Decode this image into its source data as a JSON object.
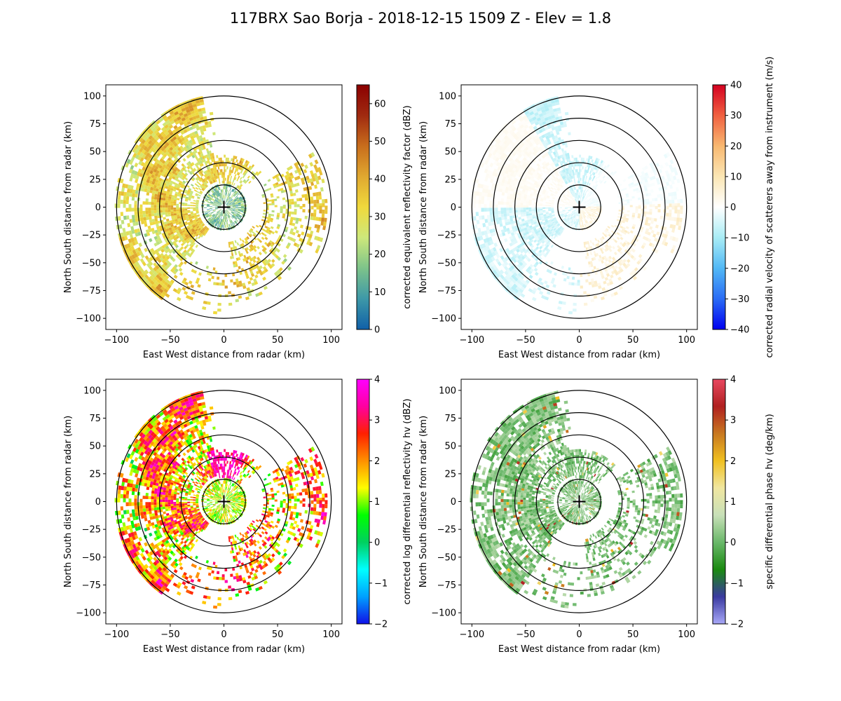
{
  "figure": {
    "title": "117BRX Sao Borja - 2018-12-15 1509 Z -  Elev = 1.8"
  },
  "colors": {
    "background": "#ffffff",
    "ring": "#000000"
  },
  "chart_data": [
    {
      "type": "heatmap",
      "title": "",
      "xlabel": "East West distance from radar (km)",
      "ylabel": "North South distance from radar (km)",
      "xlim": [
        -110,
        110
      ],
      "ylim": [
        -110,
        110
      ],
      "xticks": [
        -100,
        -50,
        0,
        50,
        100
      ],
      "yticks": [
        -100,
        -75,
        -50,
        -25,
        0,
        25,
        50,
        75,
        100
      ],
      "range_rings_km": [
        20,
        40,
        60,
        80,
        100
      ],
      "colorbar": {
        "label": "corrected equivalent reflectivity factor (dBZ)",
        "range": [
          0,
          65
        ],
        "ticks": [
          0,
          10,
          20,
          30,
          40,
          50,
          60
        ],
        "colormap": [
          "#1060a8",
          "#3d98a8",
          "#7dc38a",
          "#cde87b",
          "#f0d93c",
          "#e0a830",
          "#c86d1c",
          "#a02a10",
          "#8b0000"
        ]
      },
      "field": "reflectivity"
    },
    {
      "type": "heatmap",
      "title": "",
      "xlabel": "East West distance from radar (km)",
      "ylabel": "North South distance from radar (km)",
      "xlim": [
        -110,
        110
      ],
      "ylim": [
        -110,
        110
      ],
      "xticks": [
        -100,
        -50,
        0,
        50,
        100
      ],
      "yticks": [
        -100,
        -75,
        -50,
        -25,
        0,
        25,
        50,
        75,
        100
      ],
      "range_rings_km": [
        20,
        40,
        60,
        80,
        100
      ],
      "colorbar": {
        "label": "corrected radial velocity of scatterers away from instrument (m/s)",
        "range": [
          -40,
          40
        ],
        "ticks": [
          -40,
          -30,
          -20,
          -10,
          0,
          10,
          20,
          30,
          40
        ],
        "colormap": [
          "#0000f0",
          "#2a6cf5",
          "#52b8f5",
          "#a8ecf5",
          "#ffffff",
          "#fbe6b4",
          "#f8b870",
          "#f06040",
          "#d40020"
        ]
      },
      "field": "velocity"
    },
    {
      "type": "heatmap",
      "title": "",
      "xlabel": "East West distance from radar (km)",
      "ylabel": "North South distance from radar (km)",
      "xlim": [
        -110,
        110
      ],
      "ylim": [
        -110,
        110
      ],
      "xticks": [
        -100,
        -50,
        0,
        50,
        100
      ],
      "yticks": [
        -100,
        -75,
        -50,
        -25,
        0,
        25,
        50,
        75,
        100
      ],
      "range_rings_km": [
        20,
        40,
        60,
        80,
        100
      ],
      "colorbar": {
        "label": "corrected log differential reflectivity hv (dBZ)",
        "range": [
          -2,
          4
        ],
        "ticks": [
          -2,
          -1,
          0,
          1,
          2,
          3,
          4
        ],
        "colormap": [
          "#1010e8",
          "#00a0ff",
          "#00ffff",
          "#00d060",
          "#00ff00",
          "#fffd00",
          "#ff9000",
          "#ff2000",
          "#ff00a0",
          "#ff00ff"
        ]
      },
      "field": "zdr"
    },
    {
      "type": "heatmap",
      "title": "",
      "xlabel": "East West distance from radar (km)",
      "ylabel": "North South distance from radar (km)",
      "xlim": [
        -110,
        110
      ],
      "ylim": [
        -110,
        110
      ],
      "xticks": [
        -100,
        -50,
        0,
        50,
        100
      ],
      "yticks": [
        -100,
        -75,
        -50,
        -25,
        0,
        25,
        50,
        75,
        100
      ],
      "range_rings_km": [
        20,
        40,
        60,
        80,
        100
      ],
      "colorbar": {
        "label": "specific differential phase hv (deg/km)",
        "range": [
          -2,
          4
        ],
        "ticks": [
          -2,
          -1,
          0,
          1,
          2,
          3,
          4
        ],
        "colormap": [
          "#a8a8f8",
          "#3a3aa0",
          "#1a8a10",
          "#6ab86a",
          "#c8e0b8",
          "#f0e6a0",
          "#f0c020",
          "#c87820",
          "#b02020",
          "#e84860"
        ]
      },
      "field": "kdp"
    }
  ]
}
